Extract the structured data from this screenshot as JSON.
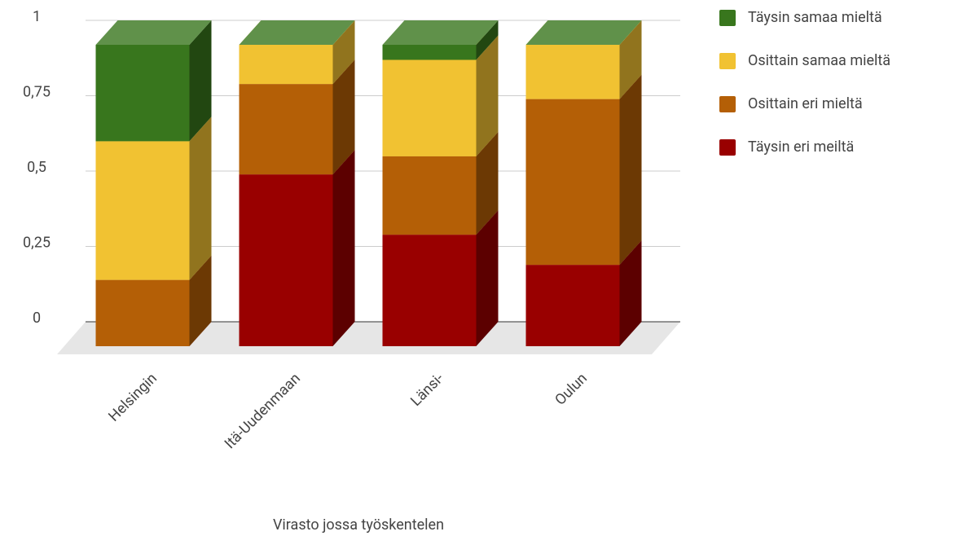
{
  "chart_data": {
    "type": "bar3d_stacked",
    "x_label": "Virasto jossa työskentelen",
    "categories": [
      "Helsingin",
      "Itä-Uudenmaan",
      "Länsi-",
      "Oulun"
    ],
    "series": [
      {
        "name": "Täysin eri meiltä",
        "color": "#990000",
        "values": [
          0,
          0.57,
          0.37,
          0.27
        ]
      },
      {
        "name": "Osittain eri mieltä",
        "color": "#b45f06",
        "values": [
          0.22,
          0.3,
          0.26,
          0.55
        ]
      },
      {
        "name": "Osittain samaa mieltä",
        "color": "#f1c232",
        "values": [
          0.46,
          0.13,
          0.32,
          0.18
        ]
      },
      {
        "name": "Täysin samaa mieltä",
        "color": "#38761d",
        "values": [
          0.32,
          0,
          0.05,
          0
        ]
      }
    ],
    "ylim": [
      0,
      1
    ],
    "yticks": [
      0,
      {
        "value": 0.25,
        "label": "0,25"
      },
      {
        "value": 0.5,
        "label": "0,5"
      },
      {
        "value": 0.75,
        "label": "0,75"
      },
      1
    ],
    "grid": true,
    "legend": "right",
    "stacked": true
  }
}
